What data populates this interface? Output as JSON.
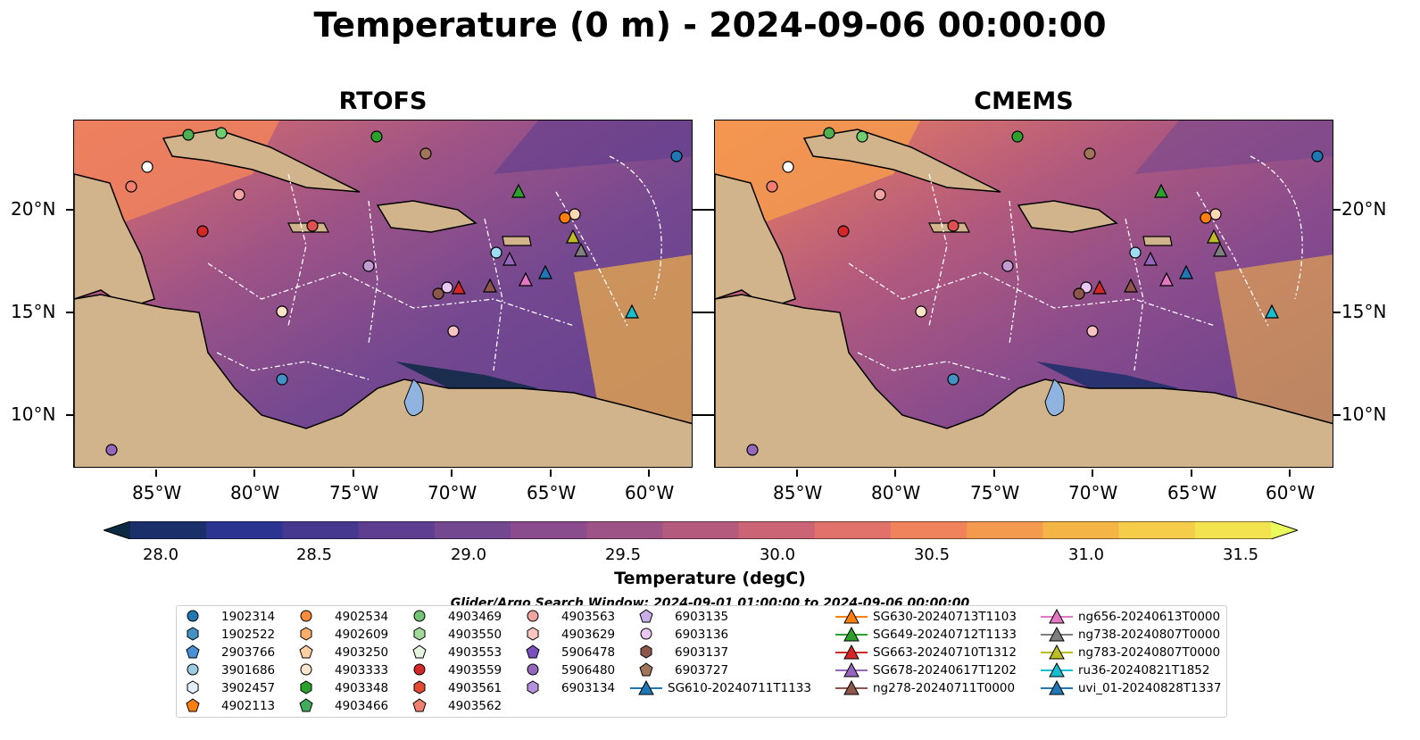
{
  "title": "Temperature (0 m) - 2024-09-06 00:00:00",
  "panels": [
    {
      "title": "RTOFS"
    },
    {
      "title": "CMEMS"
    }
  ],
  "axes": {
    "x_ticks": [
      "85°W",
      "80°W",
      "75°W",
      "70°W",
      "65°W",
      "60°W"
    ],
    "y_ticks": [
      "20°N",
      "15°N",
      "10°N"
    ]
  },
  "colorbar": {
    "label": "Temperature (degC)",
    "ticks": [
      "28.0",
      "28.5",
      "29.0",
      "29.5",
      "30.0",
      "30.5",
      "31.0",
      "31.5"
    ],
    "range": [
      28.0,
      31.5
    ],
    "colors": [
      "#0d2a45",
      "#1b2f6a",
      "#2b3591",
      "#46388f",
      "#5d3e90",
      "#744890",
      "#8a4c8c",
      "#9d5386",
      "#b35a7d",
      "#cb6474",
      "#e1726b",
      "#f0835c",
      "#f49a4f",
      "#f5b446",
      "#f6cd4b",
      "#f2e34f",
      "#eaf95c"
    ]
  },
  "search_window": "Glider/Argo Search Window: 2024-09-01 01:00:00 to 2024-09-06 00:00:00",
  "legend": {
    "col1": [
      "1902314",
      "1902522",
      "2903766",
      "3901686",
      "3902457",
      "4902113"
    ],
    "col2": [
      "4902534",
      "4902609",
      "4903250",
      "4903333",
      "4903348",
      "4903466"
    ],
    "col3": [
      "4903469",
      "4903550",
      "4903553",
      "4903559",
      "4903561",
      "4903562"
    ],
    "col4": [
      "4903563",
      "4903629",
      "5906478",
      "5906480",
      "6903134"
    ],
    "col5": [
      "6903135",
      "6903136",
      "6903137",
      "6903727",
      "SG610-20240711T1133"
    ],
    "col6": [
      "SG630-20240713T1103",
      "SG649-20240712T1133",
      "SG663-20240710T1312",
      "SG678-20240617T1202",
      "ng278-20240711T0000"
    ],
    "col7": [
      "ng656-20240613T0000",
      "ng738-20240807T0000",
      "ng783-20240807T0000",
      "ru36-20240821T1852",
      "uvi_01-20240828T1337"
    ]
  },
  "colors": {
    "land": "#d2b48c",
    "lake": "#8fb4e0",
    "ocean_base": "#6a3f8e",
    "contour": "#ffffff"
  }
}
